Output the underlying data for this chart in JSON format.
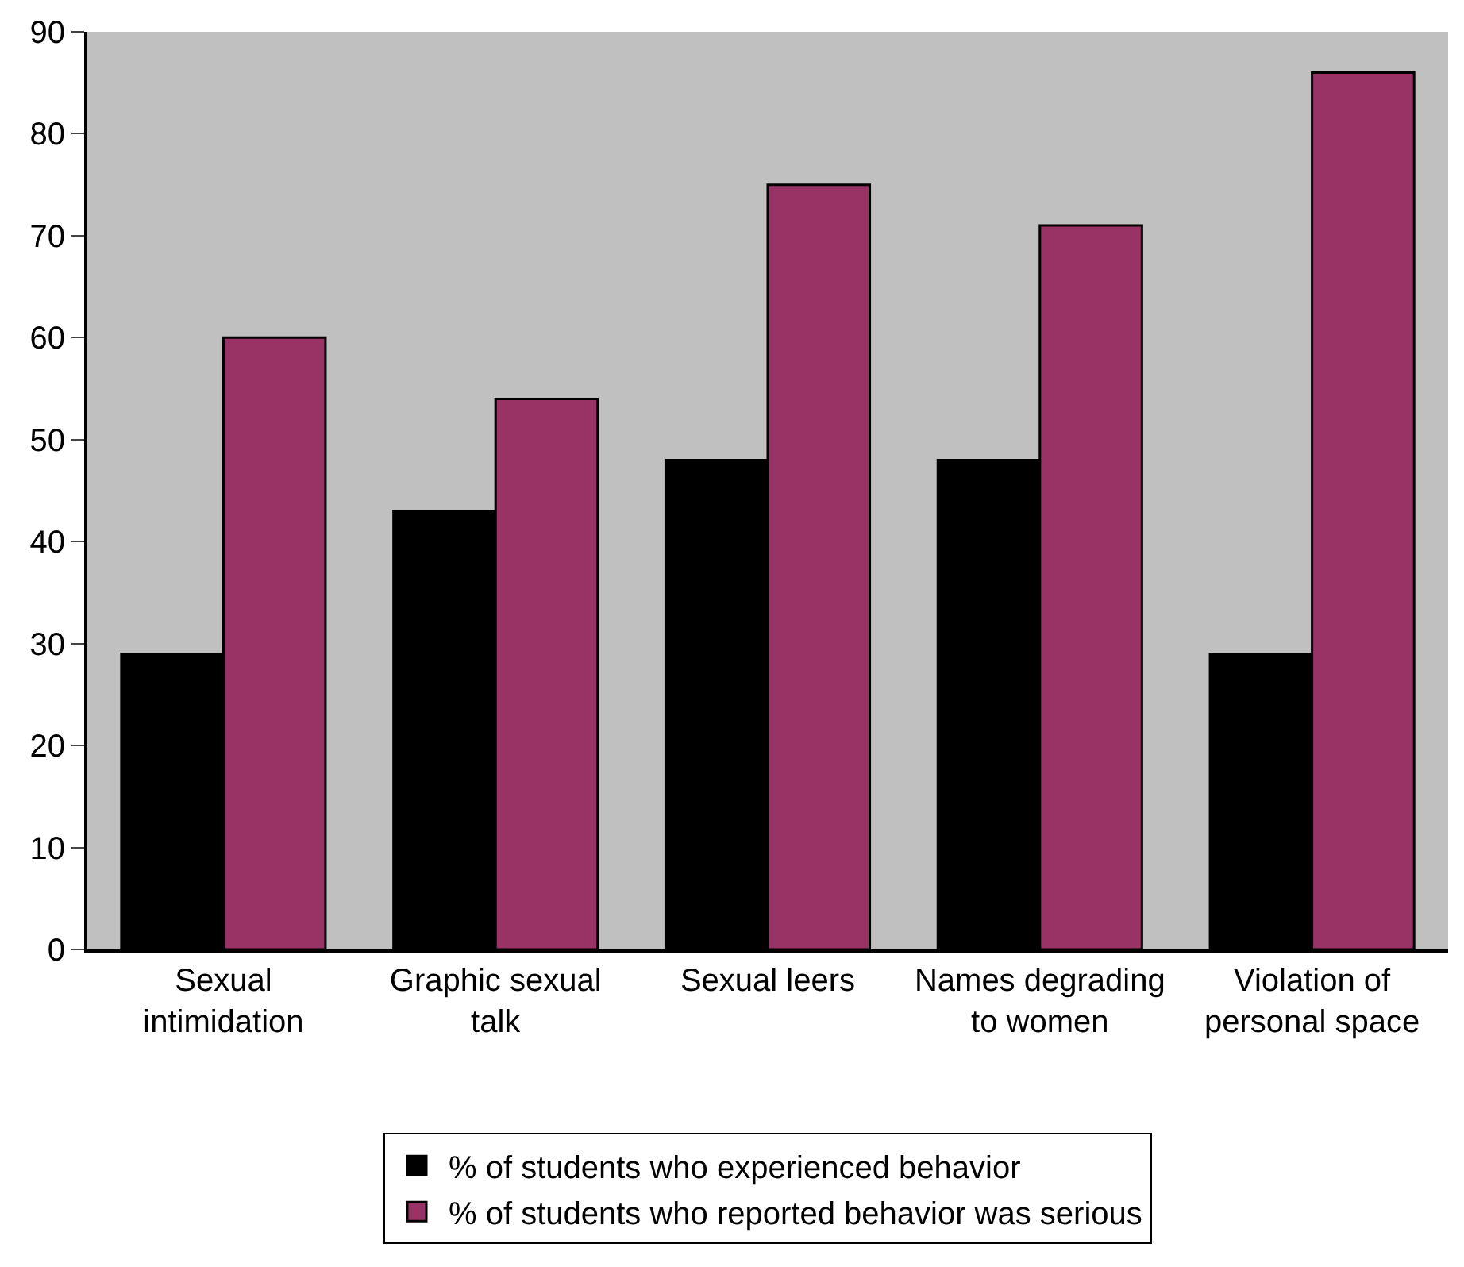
{
  "chart_data": {
    "type": "bar",
    "categories": [
      "Sexual intimidation",
      "Graphic sexual talk",
      "Sexual leers",
      "Names degrading to women",
      "Violation of personal space"
    ],
    "series": [
      {
        "name": "% of students who experienced behavior",
        "color": "#000000",
        "values": [
          29,
          43,
          48,
          48,
          29
        ]
      },
      {
        "name": "% of students who reported behavior was serious",
        "color": "#993366",
        "values": [
          60,
          54,
          75,
          71,
          86
        ]
      }
    ],
    "ylim": [
      0,
      90
    ],
    "yticks": [
      0,
      10,
      20,
      30,
      40,
      50,
      60,
      70,
      80,
      90
    ],
    "grid": false,
    "legend": "bottom"
  }
}
